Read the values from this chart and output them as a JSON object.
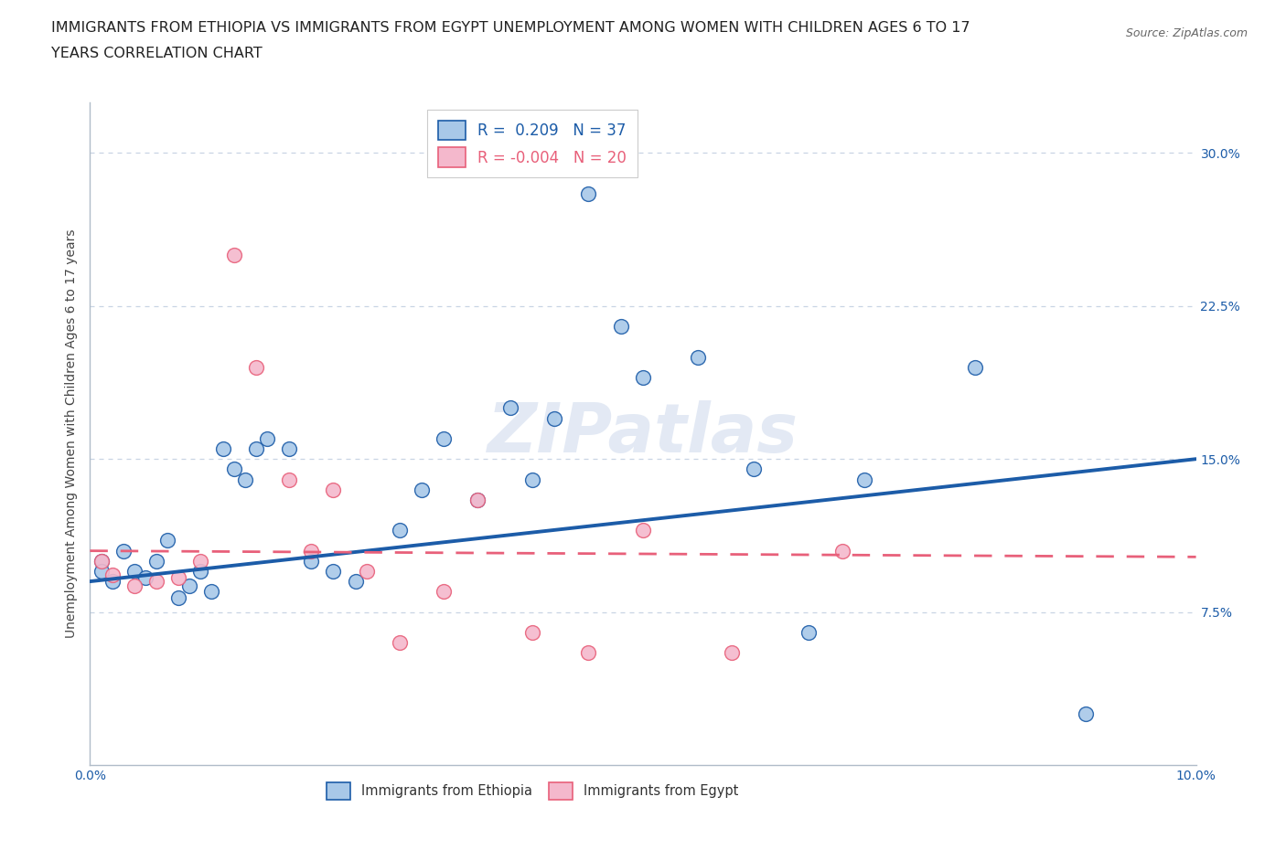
{
  "title_line1": "IMMIGRANTS FROM ETHIOPIA VS IMMIGRANTS FROM EGYPT UNEMPLOYMENT AMONG WOMEN WITH CHILDREN AGES 6 TO 17",
  "title_line2": "YEARS CORRELATION CHART",
  "source": "Source: ZipAtlas.com",
  "ylabel": "Unemployment Among Women with Children Ages 6 to 17 years",
  "legend_label1": "Immigrants from Ethiopia",
  "legend_label2": "Immigrants from Egypt",
  "r1": "0.209",
  "n1": "37",
  "r2": "-0.004",
  "n2": "20",
  "xlim": [
    0.0,
    0.1
  ],
  "ylim": [
    0.0,
    0.325
  ],
  "xticks": [
    0.0,
    0.025,
    0.05,
    0.075,
    0.1
  ],
  "xtick_labels": [
    "0.0%",
    "",
    "",
    "",
    "10.0%"
  ],
  "yticks": [
    0.0,
    0.075,
    0.15,
    0.225,
    0.3
  ],
  "ytick_labels": [
    "",
    "7.5%",
    "15.0%",
    "22.5%",
    "30.0%"
  ],
  "color_ethiopia": "#a8c8e8",
  "color_egypt": "#f4b8cc",
  "color_trend_ethiopia": "#1c5ca8",
  "color_trend_egypt": "#e8607a",
  "watermark": "ZIPatlas",
  "ethiopia_x": [
    0.001,
    0.001,
    0.002,
    0.003,
    0.004,
    0.005,
    0.006,
    0.007,
    0.008,
    0.009,
    0.01,
    0.011,
    0.012,
    0.013,
    0.014,
    0.015,
    0.016,
    0.018,
    0.02,
    0.022,
    0.024,
    0.028,
    0.03,
    0.032,
    0.035,
    0.038,
    0.04,
    0.042,
    0.045,
    0.048,
    0.05,
    0.055,
    0.06,
    0.065,
    0.07,
    0.08,
    0.09
  ],
  "ethiopia_y": [
    0.1,
    0.095,
    0.09,
    0.105,
    0.095,
    0.092,
    0.1,
    0.11,
    0.082,
    0.088,
    0.095,
    0.085,
    0.155,
    0.145,
    0.14,
    0.155,
    0.16,
    0.155,
    0.1,
    0.095,
    0.09,
    0.115,
    0.135,
    0.16,
    0.13,
    0.175,
    0.14,
    0.17,
    0.28,
    0.215,
    0.19,
    0.2,
    0.145,
    0.065,
    0.14,
    0.195,
    0.025
  ],
  "egypt_x": [
    0.001,
    0.002,
    0.004,
    0.006,
    0.008,
    0.01,
    0.013,
    0.015,
    0.018,
    0.02,
    0.022,
    0.025,
    0.028,
    0.032,
    0.035,
    0.04,
    0.045,
    0.05,
    0.058,
    0.068
  ],
  "egypt_y": [
    0.1,
    0.093,
    0.088,
    0.09,
    0.092,
    0.1,
    0.25,
    0.195,
    0.14,
    0.105,
    0.135,
    0.095,
    0.06,
    0.085,
    0.13,
    0.065,
    0.055,
    0.115,
    0.055,
    0.105
  ],
  "title_fontsize": 11.5,
  "axis_label_fontsize": 10,
  "tick_fontsize": 10,
  "source_fontsize": 9,
  "scatter_size": 130,
  "background_color": "#ffffff",
  "grid_color": "#c8d4e4",
  "axis_color": "#b0bcc8",
  "trend_eth_y0": 0.09,
  "trend_eth_y1": 0.15,
  "trend_egy_y0": 0.105,
  "trend_egy_y1": 0.102
}
